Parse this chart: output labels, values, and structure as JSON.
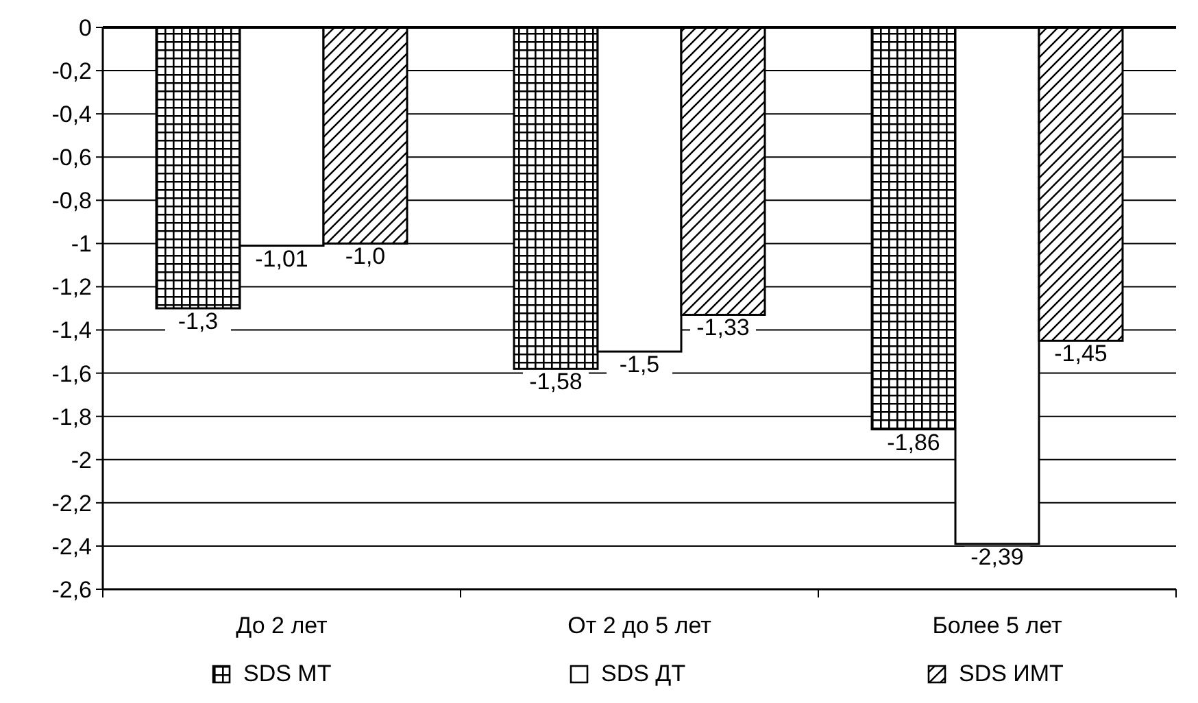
{
  "chart_data": {
    "type": "bar",
    "categories": [
      "До 2 лет",
      "От 2 до 5 лет",
      "Более 5 лет"
    ],
    "series": [
      {
        "name": "SDS МТ",
        "color": "#000000",
        "values": [
          -1.3,
          -1.58,
          -1.86
        ],
        "value_labels": [
          "-1,3",
          "-1,58",
          "-1,86"
        ]
      },
      {
        "name": "SDS ДТ",
        "color": "#ffffff",
        "values": [
          -1.01,
          -1.5,
          -2.39
        ],
        "value_labels": [
          "-1,01",
          "-1,5",
          "-2,39"
        ]
      },
      {
        "name": "SDS ИМТ",
        "color": "#000000",
        "values": [
          -1.0,
          -1.33,
          -1.45
        ],
        "value_labels": [
          "-1,0",
          "-1,33",
          "-1,45"
        ]
      }
    ],
    "ylim": [
      -2.6,
      0
    ],
    "yticks": [
      0,
      {
        "value": -0.2,
        "label": "-0,2"
      },
      {
        "value": -0.4,
        "label": "-0,4"
      },
      {
        "value": -0.6,
        "label": "-0,6"
      },
      {
        "value": -0.8,
        "label": "-0,8"
      },
      -1,
      {
        "value": -1.2,
        "label": "-1,2"
      },
      {
        "value": -1.4,
        "label": "-1,4"
      },
      {
        "value": -1.6,
        "label": "-1,6"
      },
      {
        "value": -1.8,
        "label": "-1,8"
      },
      -2,
      {
        "value": -2.2,
        "label": "-2,2"
      },
      {
        "value": -2.4,
        "label": "-2,4"
      },
      {
        "value": -2.6,
        "label": "-2,6"
      }
    ],
    "grid": "y",
    "legend": "bottom"
  }
}
